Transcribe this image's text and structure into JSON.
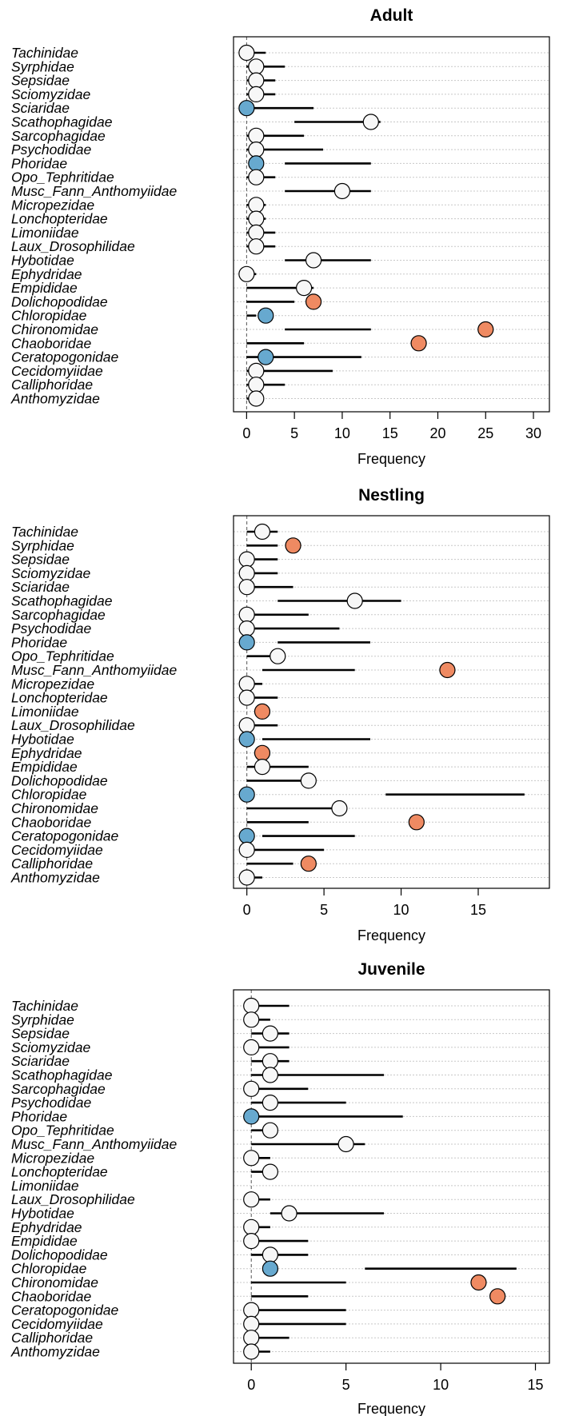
{
  "chart_data": [
    {
      "type": "dot",
      "title": "Adult",
      "xlabel": "Frequency",
      "xticks": [
        0,
        5,
        10,
        15,
        20,
        25,
        30
      ],
      "xlim": [
        -0.7,
        31.0
      ],
      "categories": [
        "Tachinidae",
        "Syrphidae",
        "Sepsidae",
        "Sciomyzidae",
        "Sciaridae",
        "Scathophagidae",
        "Sarcophagidae",
        "Psychodidae",
        "Phoridae",
        "Opo_Tephritidae",
        "Musc_Fann_Anthomyiidae",
        "Micropezidae",
        "Lonchopteridae",
        "Limoniidae",
        "Laux_Drosophilidae",
        "Hybotidae",
        "Ephydridae",
        "Empididae",
        "Dolichopodidae",
        "Chloropidae",
        "Chironomidae",
        "Chaoboridae",
        "Ceratopogonidae",
        "Cecidomyiidae",
        "Calliphoridae",
        "Anthomyzidae"
      ],
      "observed": [
        0,
        1,
        1,
        1,
        0,
        13,
        1,
        1,
        1,
        1,
        10,
        1,
        1,
        1,
        1,
        7,
        0,
        6,
        7,
        2,
        25,
        18,
        2,
        1,
        1,
        1
      ],
      "interval_low": [
        0,
        0,
        0,
        0,
        0,
        5,
        0,
        0,
        4,
        0,
        4,
        0,
        0,
        0,
        0,
        4,
        0,
        0,
        0,
        0,
        4,
        0,
        0,
        0,
        0,
        0
      ],
      "interval_high": [
        2,
        4,
        3,
        3,
        7,
        14,
        6,
        8,
        13,
        3,
        13,
        2,
        2,
        3,
        3,
        13,
        1,
        7,
        5,
        1,
        13,
        6,
        12,
        9,
        4,
        1
      ],
      "status": [
        "n",
        "n",
        "n",
        "n",
        "u",
        "n",
        "n",
        "n",
        "u",
        "n",
        "n",
        "n",
        "n",
        "n",
        "n",
        "n",
        "n",
        "n",
        "o",
        "u",
        "o",
        "o",
        "u",
        "n",
        "n",
        "n"
      ],
      "colors": {
        "n": "#f7f7f7",
        "o": "#ef8a62",
        "u": "#67a9cf"
      }
    },
    {
      "type": "dot",
      "title": "Nestling",
      "xlabel": "Frequency",
      "xticks": [
        0,
        5,
        10,
        15
      ],
      "xlim": [
        -0.45,
        19.2
      ],
      "categories": [
        "Tachinidae",
        "Syrphidae",
        "Sepsidae",
        "Sciomyzidae",
        "Sciaridae",
        "Scathophagidae",
        "Sarcophagidae",
        "Psychodidae",
        "Phoridae",
        "Opo_Tephritidae",
        "Musc_Fann_Anthomyiidae",
        "Micropezidae",
        "Lonchopteridae",
        "Limoniidae",
        "Laux_Drosophilidae",
        "Hybotidae",
        "Ephydridae",
        "Empididae",
        "Dolichopodidae",
        "Chloropidae",
        "Chironomidae",
        "Chaoboridae",
        "Ceratopogonidae",
        "Cecidomyiidae",
        "Calliphoridae",
        "Anthomyzidae"
      ],
      "observed": [
        1,
        3,
        0,
        0,
        0,
        7,
        0,
        0,
        0,
        2,
        13,
        0,
        0,
        1,
        0,
        0,
        1,
        1,
        4,
        0,
        6,
        11,
        0,
        0,
        4,
        0
      ],
      "interval_low": [
        0,
        0,
        0,
        0,
        0,
        2,
        0,
        0,
        2,
        0,
        1,
        0,
        0,
        0,
        0,
        1,
        0,
        0,
        0,
        9,
        0,
        0,
        1,
        0,
        0,
        0
      ],
      "interval_high": [
        2,
        2,
        2,
        2,
        3,
        10,
        4,
        6,
        8,
        2,
        7,
        1,
        2,
        0,
        2,
        8,
        0,
        4,
        4,
        18,
        6,
        4,
        7,
        5,
        3,
        1
      ],
      "status": [
        "n",
        "o",
        "n",
        "n",
        "n",
        "n",
        "n",
        "n",
        "u",
        "n",
        "o",
        "n",
        "n",
        "o",
        "n",
        "u",
        "o",
        "n",
        "n",
        "u",
        "n",
        "o",
        "u",
        "n",
        "o",
        "n"
      ],
      "colors": {
        "n": "#f7f7f7",
        "o": "#ef8a62",
        "u": "#67a9cf"
      }
    },
    {
      "type": "dot",
      "title": "Juvenile",
      "xlabel": "Frequency",
      "xticks": [
        0,
        5,
        10,
        15
      ],
      "xlim": [
        -0.6,
        15.4
      ],
      "categories": [
        "Tachinidae",
        "Syrphidae",
        "Sepsidae",
        "Sciomyzidae",
        "Sciaridae",
        "Scathophagidae",
        "Sarcophagidae",
        "Psychodidae",
        "Phoridae",
        "Opo_Tephritidae",
        "Musc_Fann_Anthomyiidae",
        "Micropezidae",
        "Lonchopteridae",
        "Limoniidae",
        "Laux_Drosophilidae",
        "Hybotidae",
        "Ephydridae",
        "Empididae",
        "Dolichopodidae",
        "Chloropidae",
        "Chironomidae",
        "Chaoboridae",
        "Ceratopogonidae",
        "Cecidomyiidae",
        "Calliphoridae",
        "Anthomyzidae"
      ],
      "observed": [
        0,
        0,
        1,
        0,
        1,
        1,
        0,
        1,
        0,
        1,
        5,
        0,
        1,
        null,
        0,
        2,
        0,
        0,
        1,
        1,
        12,
        13,
        0,
        0,
        0,
        0
      ],
      "interval_low": [
        0,
        0,
        0,
        0,
        0,
        0,
        0,
        0,
        0,
        0,
        0,
        0,
        0,
        null,
        0,
        1,
        0,
        0,
        0,
        6,
        0,
        0,
        0,
        0,
        0,
        0
      ],
      "interval_high": [
        2,
        1,
        2,
        2,
        2,
        7,
        3,
        5,
        8,
        1,
        6,
        1,
        1,
        null,
        1,
        7,
        1,
        3,
        3,
        14,
        5,
        3,
        5,
        5,
        2,
        1
      ],
      "status": [
        "n",
        "n",
        "n",
        "n",
        "n",
        "n",
        "n",
        "n",
        "u",
        "n",
        "n",
        "n",
        "n",
        "n",
        "n",
        "n",
        "n",
        "n",
        "n",
        "u",
        "o",
        "o",
        "n",
        "n",
        "n",
        "n"
      ],
      "colors": {
        "n": "#f7f7f7",
        "o": "#ef8a62",
        "u": "#67a9cf"
      }
    }
  ]
}
